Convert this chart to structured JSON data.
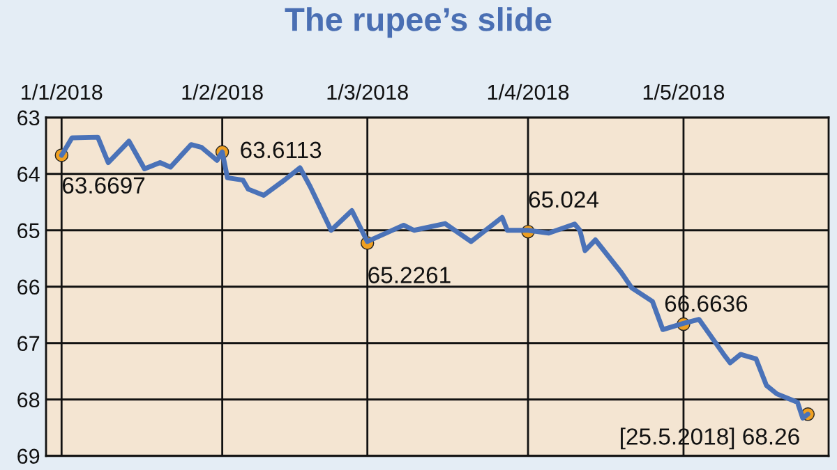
{
  "chart_data": {
    "type": "line",
    "title": "The rupee’s slide",
    "x": [
      "2018-01-01",
      "2018-01-03",
      "2018-01-08",
      "2018-01-10",
      "2018-01-14",
      "2018-01-17",
      "2018-01-20",
      "2018-01-22",
      "2018-01-26",
      "2018-01-28",
      "2018-01-31",
      "2018-02-01",
      "2018-02-02",
      "2018-02-05",
      "2018-02-06",
      "2018-02-09",
      "2018-02-13",
      "2018-02-16",
      "2018-02-18",
      "2018-02-22",
      "2018-02-26",
      "2018-03-01",
      "2018-03-08",
      "2018-03-10",
      "2018-03-16",
      "2018-03-21",
      "2018-03-27",
      "2018-03-28",
      "2018-04-01",
      "2018-04-05",
      "2018-04-10",
      "2018-04-11",
      "2018-04-12",
      "2018-04-14",
      "2018-04-19",
      "2018-04-21",
      "2018-04-25",
      "2018-04-27",
      "2018-05-01",
      "2018-05-04",
      "2018-05-09",
      "2018-05-10",
      "2018-05-12",
      "2018-05-15",
      "2018-05-17",
      "2018-05-19",
      "2018-05-23",
      "2018-05-24",
      "2018-05-25"
    ],
    "series": [
      {
        "color": "#4a72b8",
        "values": [
          63.67,
          63.36,
          63.35,
          63.8,
          63.42,
          63.91,
          63.8,
          63.88,
          63.48,
          63.53,
          63.76,
          63.61,
          64.07,
          64.11,
          64.27,
          64.38,
          64.11,
          63.89,
          64.23,
          65.0,
          64.65,
          65.2,
          64.91,
          65.0,
          64.88,
          65.2,
          64.77,
          65.0,
          65.0,
          65.05,
          64.89,
          65.0,
          65.36,
          65.17,
          65.75,
          66.02,
          66.26,
          66.76,
          66.65,
          66.58,
          67.23,
          67.35,
          67.2,
          67.28,
          67.75,
          67.9,
          68.05,
          68.33,
          68.26
        ]
      }
    ],
    "xlim": [
      "2017-12-29",
      "2018-05-29"
    ],
    "xticks": [
      {
        "value": "2018-01-01",
        "label": "1/1/2018"
      },
      {
        "value": "2018-02-01",
        "label": "1/2/2018"
      },
      {
        "value": "2018-03-01",
        "label": "1/3/2018"
      },
      {
        "value": "2018-04-01",
        "label": "1/4/2018"
      },
      {
        "value": "2018-05-01",
        "label": "1/5/2018"
      }
    ],
    "ylim": [
      69,
      63
    ],
    "yticks": [
      63,
      64,
      65,
      66,
      67,
      68,
      69
    ],
    "grid": true,
    "marker": "none",
    "line_style": "solid",
    "annotations": [
      {
        "text": "63.6697",
        "x": "2018-01-01",
        "y": 63.6697
      },
      {
        "text": "63.6113",
        "x": "2018-02-01",
        "y": 63.6113
      },
      {
        "text": "65.2261",
        "x": "2018-03-01",
        "y": 65.2261
      },
      {
        "text": "65.024",
        "x": "2018-04-01",
        "y": 65.024
      },
      {
        "text": "66.6636",
        "x": "2018-05-01",
        "y": 66.6636
      },
      {
        "text": "[25.5.2018] 68.26",
        "x": "2018-05-25",
        "y": 68.26
      }
    ]
  }
}
